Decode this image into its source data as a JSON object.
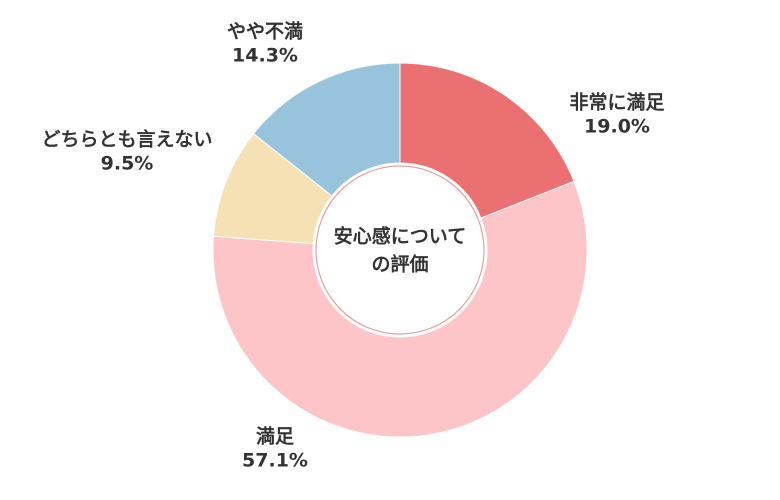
{
  "chart_data": {
    "type": "donut",
    "center_label": [
      "安心感について",
      "の評価"
    ],
    "categories": [
      "非常に満足",
      "満足",
      "どちらとも言えない",
      "やや不満"
    ],
    "values": [
      19.0,
      57.1,
      9.5,
      14.3
    ],
    "value_labels": [
      "19.0%",
      "57.1%",
      "9.5%",
      "14.3%"
    ],
    "colors": [
      "#eb7071",
      "#fdc5c7",
      "#f5e1b4",
      "#97c3dc"
    ]
  }
}
